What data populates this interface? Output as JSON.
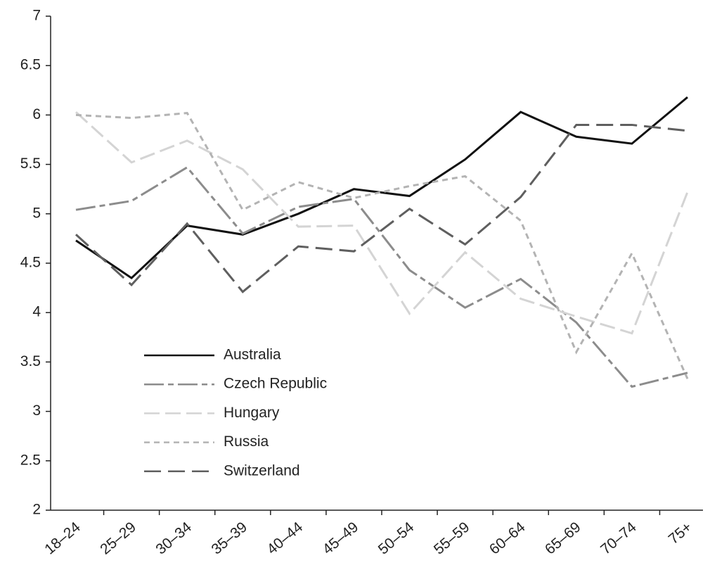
{
  "chart_data": {
    "type": "line",
    "categories": [
      "18–24",
      "25–29",
      "30–34",
      "35–39",
      "40–44",
      "45–49",
      "50–54",
      "55–59",
      "60–64",
      "65–69",
      "70–74",
      "75+"
    ],
    "series": [
      {
        "name": "Australia",
        "color": "#111111",
        "values": [
          4.73,
          4.35,
          4.88,
          4.79,
          5.0,
          5.25,
          5.18,
          5.55,
          6.03,
          5.78,
          5.71,
          6.18
        ]
      },
      {
        "name": "Czech Republic",
        "color": "#8c8c8c",
        "values": [
          5.04,
          5.13,
          5.47,
          4.8,
          5.07,
          5.15,
          4.43,
          4.05,
          4.34,
          3.9,
          3.25,
          3.39
        ]
      },
      {
        "name": "Hungary",
        "color": "#d4d4d4",
        "values": [
          6.03,
          5.52,
          5.74,
          5.45,
          4.87,
          4.88,
          3.99,
          4.61,
          4.14,
          3.96,
          3.79,
          5.22
        ]
      },
      {
        "name": "Russia",
        "color": "#b3b3b3",
        "values": [
          6.0,
          5.97,
          6.02,
          5.04,
          5.32,
          5.16,
          5.28,
          5.38,
          4.93,
          3.6,
          4.6,
          3.33
        ]
      },
      {
        "name": "Switzerland",
        "color": "#5f5f5f",
        "values": [
          4.79,
          4.28,
          4.9,
          4.21,
          4.67,
          4.62,
          5.05,
          4.69,
          5.17,
          5.9,
          5.9,
          5.84
        ]
      }
    ],
    "ylim": [
      2,
      7
    ],
    "yticks": [
      2,
      2.5,
      3,
      3.5,
      4,
      4.5,
      5,
      5.5,
      6,
      6.5,
      7
    ],
    "grid": false,
    "legend": "lower left"
  }
}
